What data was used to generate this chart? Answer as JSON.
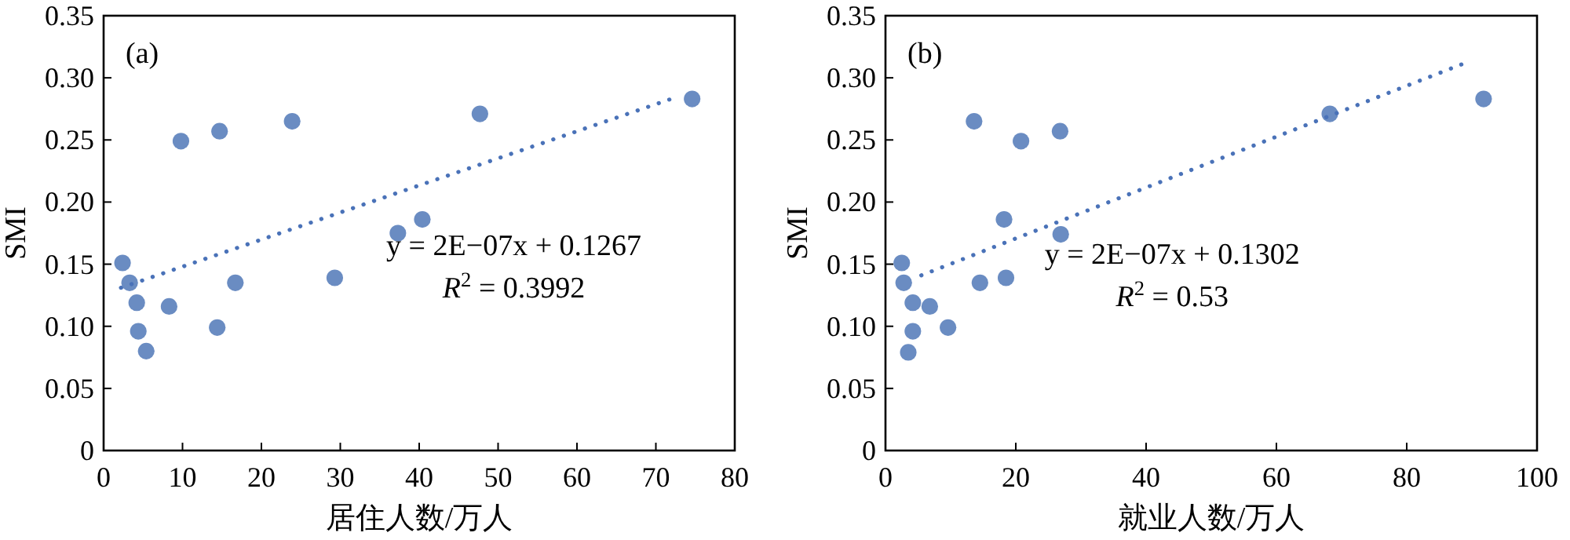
{
  "chart_data": [
    {
      "type": "scatter",
      "title": "(a)",
      "xlabel": "居住人数/万人",
      "ylabel": "SMI",
      "xlim": [
        0,
        80
      ],
      "xticks": [
        0,
        10,
        20,
        30,
        40,
        50,
        60,
        70,
        80
      ],
      "ylim": [
        0,
        0.35
      ],
      "yticks": [
        0,
        0.05,
        {
          "value": 0.1,
          "label": "0.10"
        },
        0.15,
        {
          "value": 0.2,
          "label": "0.20"
        },
        0.25,
        {
          "value": 0.3,
          "label": "0.30"
        },
        0.35
      ],
      "grid": false,
      "annotations": [
        "y = 2E−07x + 0.1267",
        "*R*$^{2}$ = 0.3992"
      ],
      "series": [
        {
          "type": "scatter",
          "marker": "circle",
          "color": "#6a8cc2",
          "x": [
            2.4,
            3.3,
            4.2,
            4.4,
            5.4,
            8.3,
            9.8,
            14.4,
            14.7,
            16.7,
            23.9,
            29.3,
            37.3,
            40.4,
            47.7,
            74.6
          ],
          "values": [
            0.151,
            0.135,
            0.119,
            0.096,
            0.08,
            0.116,
            0.249,
            0.099,
            0.257,
            0.135,
            0.265,
            0.139,
            0.175,
            0.186,
            0.271,
            0.283
          ]
        },
        {
          "type": "line",
          "marker": "none",
          "line_style": "dotted",
          "color": "#4a72b8",
          "x": [
            2.2,
            72.4
          ],
          "values": [
            0.131,
            0.284
          ]
        }
      ]
    },
    {
      "type": "scatter",
      "title": "(b)",
      "xlabel": "就业人数/万人",
      "ylabel": "SMI",
      "xlim": [
        0,
        100
      ],
      "xticks": [
        0,
        20,
        40,
        60,
        80,
        100
      ],
      "ylim": [
        0,
        0.35
      ],
      "yticks": [
        0,
        0.05,
        {
          "value": 0.1,
          "label": "0.10"
        },
        0.15,
        {
          "value": 0.2,
          "label": "0.20"
        },
        0.25,
        {
          "value": 0.3,
          "label": "0.30"
        },
        0.35
      ],
      "grid": false,
      "annotations": [
        "y = 2E−07x + 0.1302",
        "*R*$^{2}$ = 0.53"
      ],
      "series": [
        {
          "type": "scatter",
          "marker": "circle",
          "color": "#6a8cc2",
          "x": [
            2.5,
            2.8,
            4.2,
            4.2,
            3.5,
            6.8,
            9.6,
            13.6,
            14.5,
            18.2,
            18.5,
            20.8,
            26.8,
            26.9,
            68.2,
            91.8
          ],
          "values": [
            0.151,
            0.135,
            0.119,
            0.096,
            0.079,
            0.116,
            0.099,
            0.265,
            0.135,
            0.186,
            0.139,
            0.249,
            0.257,
            0.174,
            0.271,
            0.283
          ]
        },
        {
          "type": "line",
          "marker": "none",
          "line_style": "dotted",
          "color": "#4a72b8",
          "x": [
            5.5,
            89.0
          ],
          "values": [
            0.141,
            0.312
          ]
        }
      ]
    }
  ]
}
